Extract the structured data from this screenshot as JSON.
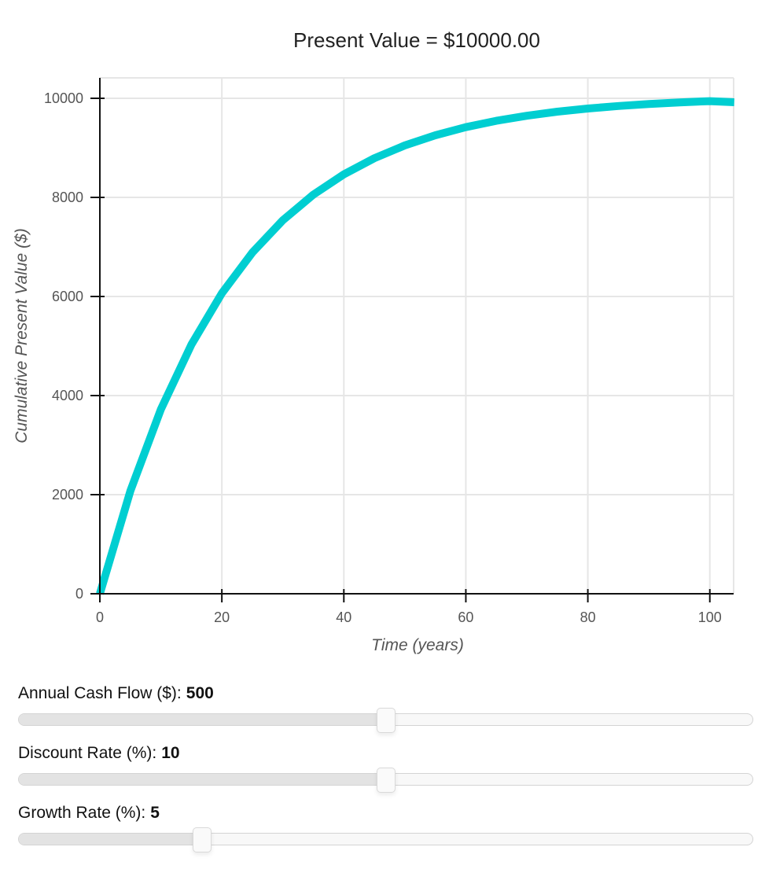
{
  "chart_data": {
    "type": "line",
    "title": "Present Value = $10000.00",
    "xlabel": "Time (years)",
    "ylabel": "Cumulative Present Value ($)",
    "xlim": [
      0,
      103.9
    ],
    "ylim": [
      0,
      10413
    ],
    "xticks": [
      0,
      20,
      40,
      60,
      80,
      100
    ],
    "yticks": [
      0,
      2000,
      4000,
      6000,
      8000,
      10000
    ],
    "xtick_labels": [
      "0",
      "20",
      "40",
      "60",
      "80",
      "100"
    ],
    "ytick_labels": [
      "0",
      "2000",
      "4000",
      "6000",
      "8000",
      "10000"
    ],
    "grid": true,
    "legend": null,
    "series": [
      {
        "name": "Cumulative Present Value",
        "color": "#00CED1",
        "x": [
          0,
          5,
          10,
          15,
          20,
          25,
          30,
          35,
          40,
          45,
          50,
          55,
          60,
          65,
          70,
          75,
          80,
          85,
          90,
          95,
          100,
          104
        ],
        "values": [
          0,
          2075,
          3722,
          5028,
          6064,
          6886,
          7538,
          8055,
          8465,
          8791,
          9049,
          9254,
          9417,
          9546,
          9648,
          9730,
          9794,
          9845,
          9885,
          9917,
          9943,
          9921
        ]
      }
    ]
  },
  "controls": [
    {
      "label": "Annual Cash Flow ($):",
      "value": "500",
      "fraction": 0.5
    },
    {
      "label": "Discount Rate (%):",
      "value": "10",
      "fraction": 0.5
    },
    {
      "label": "Growth Rate (%):",
      "value": "5",
      "fraction": 0.25
    }
  ]
}
